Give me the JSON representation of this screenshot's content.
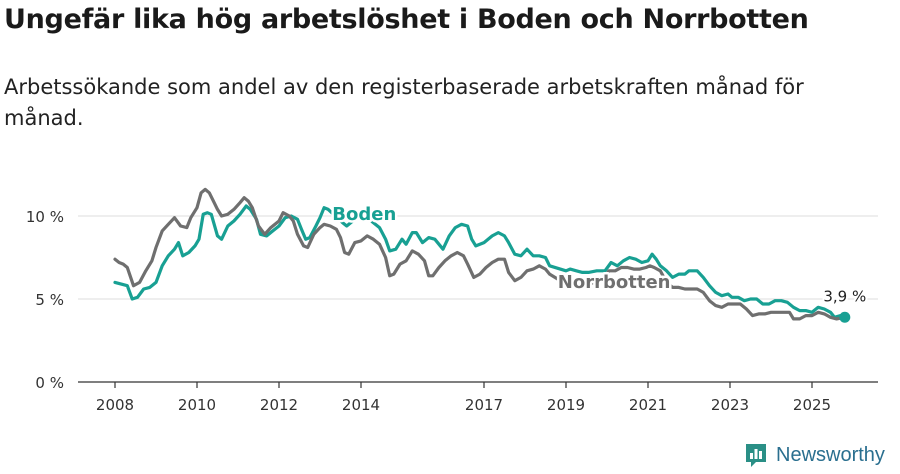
{
  "title": "Ungefär lika hög arbetslöshet i Boden och Norrbotten",
  "subtitle": "Arbetssökande som andel av den registerbaserade arbetskraften månad för månad.",
  "brand": "Newsworthy",
  "colors": {
    "boden": "#18a093",
    "norrbotten": "#6f6f6f",
    "grid": "#dddddd",
    "axis": "#333333"
  },
  "chart_data": {
    "type": "line",
    "title": "Ungefär lika hög arbetslöshet i Boden och Norrbotten",
    "xlabel": "",
    "ylabel": "",
    "xlim": [
      2008,
      2025.8
    ],
    "ylim": [
      0,
      12
    ],
    "x_ticks": [
      2008,
      2010,
      2012,
      2014,
      2017,
      2019,
      2021,
      2023,
      2025
    ],
    "y_ticks": [
      {
        "value": 0,
        "label": "0 %"
      },
      {
        "value": 5,
        "label": "5 %"
      },
      {
        "value": 10,
        "label": "10 %"
      }
    ],
    "end_label": "3,9 %",
    "series": [
      {
        "name": "Boden",
        "label_at": 2013.3,
        "points": [
          [
            2008.0,
            6.0
          ],
          [
            2008.15,
            5.9
          ],
          [
            2008.3,
            5.8
          ],
          [
            2008.42,
            5.0
          ],
          [
            2008.55,
            5.1
          ],
          [
            2008.7,
            5.6
          ],
          [
            2008.85,
            5.7
          ],
          [
            2009.0,
            6.0
          ],
          [
            2009.15,
            7.0
          ],
          [
            2009.3,
            7.6
          ],
          [
            2009.45,
            8.0
          ],
          [
            2009.55,
            8.4
          ],
          [
            2009.65,
            7.6
          ],
          [
            2009.8,
            7.8
          ],
          [
            2009.95,
            8.2
          ],
          [
            2010.05,
            8.6
          ],
          [
            2010.15,
            10.1
          ],
          [
            2010.25,
            10.2
          ],
          [
            2010.35,
            10.1
          ],
          [
            2010.5,
            8.8
          ],
          [
            2010.6,
            8.6
          ],
          [
            2010.75,
            9.4
          ],
          [
            2010.9,
            9.7
          ],
          [
            2011.05,
            10.1
          ],
          [
            2011.2,
            10.6
          ],
          [
            2011.3,
            10.4
          ],
          [
            2011.45,
            9.8
          ],
          [
            2011.55,
            8.9
          ],
          [
            2011.7,
            8.8
          ],
          [
            2011.85,
            9.1
          ],
          [
            2012.0,
            9.4
          ],
          [
            2012.15,
            9.9
          ],
          [
            2012.3,
            10.0
          ],
          [
            2012.45,
            9.8
          ],
          [
            2012.55,
            9.2
          ],
          [
            2012.65,
            8.6
          ],
          [
            2012.75,
            8.7
          ],
          [
            2012.9,
            9.4
          ],
          [
            2013.0,
            9.9
          ],
          [
            2013.1,
            10.5
          ],
          [
            2013.2,
            10.4
          ],
          [
            2013.55,
            9.6
          ],
          [
            2013.65,
            9.4
          ],
          [
            2013.8,
            9.7
          ],
          [
            2014.0,
            10.0
          ],
          [
            2014.15,
            9.9
          ],
          [
            2014.3,
            9.6
          ],
          [
            2014.45,
            9.3
          ],
          [
            2014.6,
            8.6
          ],
          [
            2014.7,
            7.9
          ],
          [
            2014.85,
            8.0
          ],
          [
            2015.0,
            8.6
          ],
          [
            2015.1,
            8.3
          ],
          [
            2015.25,
            9.0
          ],
          [
            2015.35,
            9.0
          ],
          [
            2015.5,
            8.4
          ],
          [
            2015.65,
            8.7
          ],
          [
            2015.8,
            8.6
          ],
          [
            2016.0,
            8.0
          ],
          [
            2016.15,
            8.8
          ],
          [
            2016.3,
            9.3
          ],
          [
            2016.45,
            9.5
          ],
          [
            2016.6,
            9.4
          ],
          [
            2016.7,
            8.6
          ],
          [
            2016.8,
            8.2
          ],
          [
            2017.0,
            8.4
          ],
          [
            2017.2,
            8.8
          ],
          [
            2017.35,
            9.0
          ],
          [
            2017.5,
            8.8
          ],
          [
            2017.6,
            8.4
          ],
          [
            2017.75,
            7.7
          ],
          [
            2017.9,
            7.6
          ],
          [
            2018.05,
            8.0
          ],
          [
            2018.2,
            7.6
          ],
          [
            2018.35,
            7.6
          ],
          [
            2018.5,
            7.5
          ],
          [
            2018.6,
            7.0
          ],
          [
            2019.0,
            6.7
          ],
          [
            2019.1,
            6.8
          ],
          [
            2019.25,
            6.7
          ],
          [
            2019.4,
            6.6
          ],
          [
            2019.55,
            6.6
          ],
          [
            2019.75,
            6.7
          ],
          [
            2019.95,
            6.7
          ],
          [
            2020.1,
            7.2
          ],
          [
            2020.25,
            7.0
          ],
          [
            2020.4,
            7.3
          ],
          [
            2020.55,
            7.5
          ],
          [
            2020.7,
            7.4
          ],
          [
            2020.85,
            7.2
          ],
          [
            2021.0,
            7.3
          ],
          [
            2021.1,
            7.7
          ],
          [
            2021.2,
            7.4
          ],
          [
            2021.3,
            7.0
          ],
          [
            2021.45,
            6.7
          ],
          [
            2021.6,
            6.3
          ],
          [
            2021.75,
            6.5
          ],
          [
            2021.9,
            6.5
          ],
          [
            2022.0,
            6.7
          ],
          [
            2022.2,
            6.7
          ],
          [
            2022.35,
            6.3
          ],
          [
            2022.5,
            5.8
          ],
          [
            2022.65,
            5.4
          ],
          [
            2022.8,
            5.2
          ],
          [
            2022.95,
            5.3
          ],
          [
            2023.05,
            5.1
          ],
          [
            2023.2,
            5.1
          ],
          [
            2023.35,
            4.9
          ],
          [
            2023.5,
            5.0
          ],
          [
            2023.65,
            5.0
          ],
          [
            2023.8,
            4.7
          ],
          [
            2023.95,
            4.7
          ],
          [
            2024.1,
            4.9
          ],
          [
            2024.25,
            4.9
          ],
          [
            2024.4,
            4.8
          ],
          [
            2024.55,
            4.5
          ],
          [
            2024.7,
            4.3
          ],
          [
            2024.85,
            4.3
          ],
          [
            2025.0,
            4.2
          ],
          [
            2025.15,
            4.5
          ],
          [
            2025.3,
            4.4
          ],
          [
            2025.45,
            4.2
          ],
          [
            2025.55,
            3.9
          ],
          [
            2025.7,
            4.0
          ],
          [
            2025.8,
            3.9
          ]
        ]
      },
      {
        "name": "Norrbotten",
        "label_at": 2018.8,
        "points": [
          [
            2008.0,
            7.4
          ],
          [
            2008.1,
            7.2
          ],
          [
            2008.2,
            7.1
          ],
          [
            2008.3,
            6.9
          ],
          [
            2008.45,
            5.8
          ],
          [
            2008.6,
            6.0
          ],
          [
            2008.75,
            6.7
          ],
          [
            2008.9,
            7.3
          ],
          [
            2009.0,
            8.1
          ],
          [
            2009.15,
            9.1
          ],
          [
            2009.3,
            9.5
          ],
          [
            2009.45,
            9.9
          ],
          [
            2009.6,
            9.4
          ],
          [
            2009.75,
            9.3
          ],
          [
            2009.85,
            9.9
          ],
          [
            2010.0,
            10.5
          ],
          [
            2010.1,
            11.4
          ],
          [
            2010.2,
            11.6
          ],
          [
            2010.3,
            11.4
          ],
          [
            2010.4,
            10.9
          ],
          [
            2010.5,
            10.4
          ],
          [
            2010.6,
            10.0
          ],
          [
            2010.75,
            10.1
          ],
          [
            2010.9,
            10.4
          ],
          [
            2011.05,
            10.8
          ],
          [
            2011.15,
            11.1
          ],
          [
            2011.25,
            10.9
          ],
          [
            2011.35,
            10.5
          ],
          [
            2011.5,
            9.4
          ],
          [
            2011.65,
            8.9
          ],
          [
            2011.8,
            9.3
          ],
          [
            2012.0,
            9.7
          ],
          [
            2012.1,
            10.2
          ],
          [
            2012.25,
            10.0
          ],
          [
            2012.35,
            9.7
          ],
          [
            2012.45,
            8.9
          ],
          [
            2012.6,
            8.2
          ],
          [
            2012.7,
            8.1
          ],
          [
            2012.85,
            8.9
          ],
          [
            2013.0,
            9.3
          ],
          [
            2013.1,
            9.5
          ],
          [
            2013.25,
            9.4
          ],
          [
            2013.4,
            9.2
          ],
          [
            2013.5,
            8.7
          ],
          [
            2013.6,
            7.8
          ],
          [
            2013.7,
            7.7
          ],
          [
            2013.85,
            8.4
          ],
          [
            2014.0,
            8.5
          ],
          [
            2014.15,
            8.8
          ],
          [
            2014.3,
            8.6
          ],
          [
            2014.45,
            8.3
          ],
          [
            2014.6,
            7.5
          ],
          [
            2014.7,
            6.4
          ],
          [
            2014.8,
            6.5
          ],
          [
            2014.95,
            7.1
          ],
          [
            2015.1,
            7.3
          ],
          [
            2015.25,
            7.9
          ],
          [
            2015.4,
            7.7
          ],
          [
            2015.55,
            7.3
          ],
          [
            2015.65,
            6.4
          ],
          [
            2015.75,
            6.4
          ],
          [
            2015.9,
            6.9
          ],
          [
            2016.05,
            7.3
          ],
          [
            2016.2,
            7.6
          ],
          [
            2016.35,
            7.8
          ],
          [
            2016.5,
            7.6
          ],
          [
            2016.6,
            7.1
          ],
          [
            2016.75,
            6.3
          ],
          [
            2016.9,
            6.5
          ],
          [
            2017.05,
            6.9
          ],
          [
            2017.2,
            7.2
          ],
          [
            2017.35,
            7.4
          ],
          [
            2017.5,
            7.4
          ],
          [
            2017.6,
            6.6
          ],
          [
            2017.75,
            6.1
          ],
          [
            2017.9,
            6.3
          ],
          [
            2018.05,
            6.7
          ],
          [
            2018.2,
            6.8
          ],
          [
            2018.35,
            7.0
          ],
          [
            2018.5,
            6.8
          ],
          [
            2018.6,
            6.5
          ],
          [
            2019.0,
            5.9
          ],
          [
            2019.2,
            5.8
          ],
          [
            2019.4,
            5.7
          ],
          [
            2019.6,
            5.9
          ],
          [
            2019.75,
            6.1
          ],
          [
            2019.9,
            6.2
          ],
          [
            2020.05,
            6.7
          ],
          [
            2020.2,
            6.7
          ],
          [
            2020.35,
            6.9
          ],
          [
            2020.5,
            6.9
          ],
          [
            2020.65,
            6.8
          ],
          [
            2020.8,
            6.8
          ],
          [
            2020.95,
            6.9
          ],
          [
            2021.05,
            7.0
          ],
          [
            2021.15,
            6.9
          ],
          [
            2021.3,
            6.7
          ],
          [
            2021.45,
            6.0
          ],
          [
            2021.6,
            5.7
          ],
          [
            2021.75,
            5.7
          ],
          [
            2021.9,
            5.6
          ],
          [
            2022.05,
            5.6
          ],
          [
            2022.2,
            5.6
          ],
          [
            2022.35,
            5.4
          ],
          [
            2022.5,
            4.9
          ],
          [
            2022.65,
            4.6
          ],
          [
            2022.8,
            4.5
          ],
          [
            2022.95,
            4.7
          ],
          [
            2023.1,
            4.7
          ],
          [
            2023.25,
            4.7
          ],
          [
            2023.4,
            4.4
          ],
          [
            2023.55,
            4.0
          ],
          [
            2023.7,
            4.1
          ],
          [
            2023.85,
            4.1
          ],
          [
            2024.0,
            4.2
          ],
          [
            2024.15,
            4.2
          ],
          [
            2024.3,
            4.2
          ],
          [
            2024.45,
            4.2
          ],
          [
            2024.55,
            3.8
          ],
          [
            2024.7,
            3.8
          ],
          [
            2024.85,
            4.0
          ],
          [
            2025.0,
            4.0
          ],
          [
            2025.15,
            4.2
          ],
          [
            2025.3,
            4.1
          ],
          [
            2025.45,
            3.9
          ],
          [
            2025.6,
            3.8
          ],
          [
            2025.8,
            3.9
          ]
        ]
      }
    ]
  }
}
